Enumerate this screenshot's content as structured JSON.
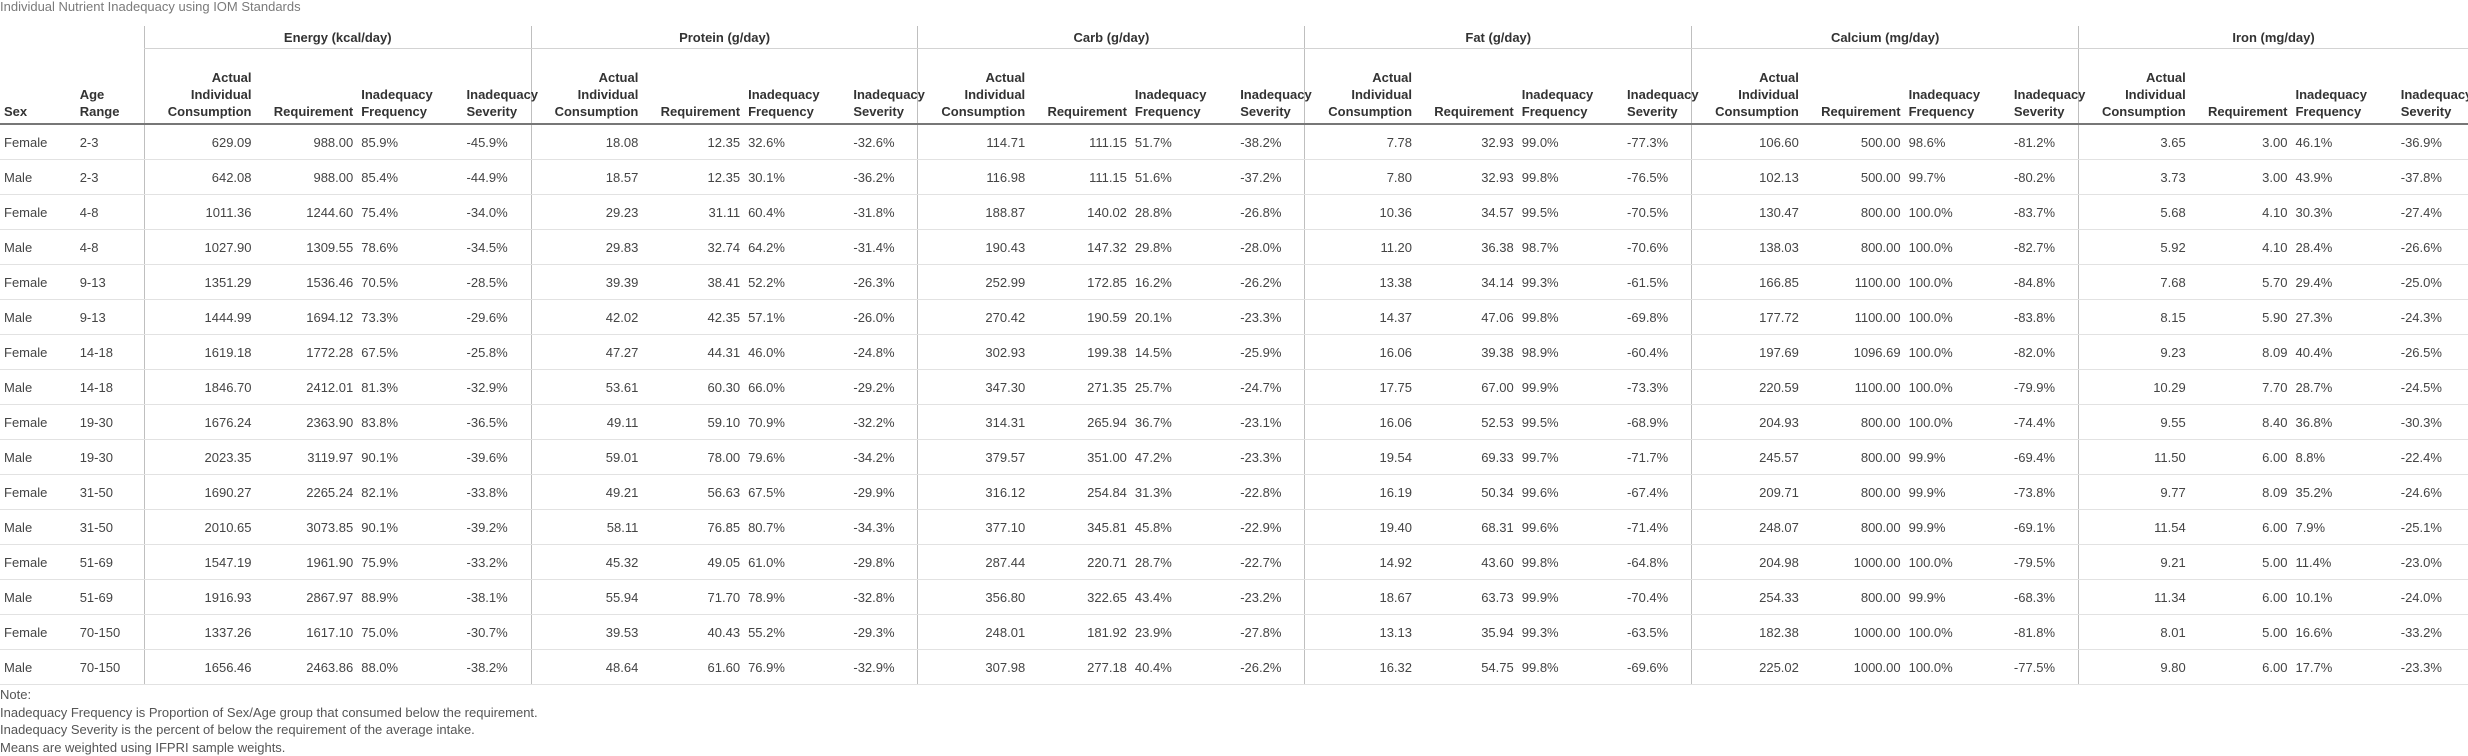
{
  "title": "Individual Nutrient Inadequacy using IOM Standards",
  "group_headers": [
    "Energy (kcal/day)",
    "Protein (g/day)",
    "Carb (g/day)",
    "Fat (g/day)",
    "Calcium (mg/day)",
    "Iron (mg/day)"
  ],
  "col_headers": {
    "sex": "Sex",
    "age": "Age Range",
    "actual": "Actual Individual Consumption",
    "requirement": "Requirement",
    "frequency": "Inadequacy Frequency",
    "severity": "Inadequacy Severity"
  },
  "rows": [
    {
      "sex": "Female",
      "age": "2-3",
      "v": [
        [
          "629.09",
          "988.00",
          "85.9%",
          "-45.9%"
        ],
        [
          "18.08",
          "12.35",
          "32.6%",
          "-32.6%"
        ],
        [
          "114.71",
          "111.15",
          "51.7%",
          "-38.2%"
        ],
        [
          "7.78",
          "32.93",
          "99.0%",
          "-77.3%"
        ],
        [
          "106.60",
          "500.00",
          "98.6%",
          "-81.2%"
        ],
        [
          "3.65",
          "3.00",
          "46.1%",
          "-36.9%"
        ]
      ]
    },
    {
      "sex": "Male",
      "age": "2-3",
      "v": [
        [
          "642.08",
          "988.00",
          "85.4%",
          "-44.9%"
        ],
        [
          "18.57",
          "12.35",
          "30.1%",
          "-36.2%"
        ],
        [
          "116.98",
          "111.15",
          "51.6%",
          "-37.2%"
        ],
        [
          "7.80",
          "32.93",
          "99.8%",
          "-76.5%"
        ],
        [
          "102.13",
          "500.00",
          "99.7%",
          "-80.2%"
        ],
        [
          "3.73",
          "3.00",
          "43.9%",
          "-37.8%"
        ]
      ]
    },
    {
      "sex": "Female",
      "age": "4-8",
      "v": [
        [
          "1011.36",
          "1244.60",
          "75.4%",
          "-34.0%"
        ],
        [
          "29.23",
          "31.11",
          "60.4%",
          "-31.8%"
        ],
        [
          "188.87",
          "140.02",
          "28.8%",
          "-26.8%"
        ],
        [
          "10.36",
          "34.57",
          "99.5%",
          "-70.5%"
        ],
        [
          "130.47",
          "800.00",
          "100.0%",
          "-83.7%"
        ],
        [
          "5.68",
          "4.10",
          "30.3%",
          "-27.4%"
        ]
      ]
    },
    {
      "sex": "Male",
      "age": "4-8",
      "v": [
        [
          "1027.90",
          "1309.55",
          "78.6%",
          "-34.5%"
        ],
        [
          "29.83",
          "32.74",
          "64.2%",
          "-31.4%"
        ],
        [
          "190.43",
          "147.32",
          "29.8%",
          "-28.0%"
        ],
        [
          "11.20",
          "36.38",
          "98.7%",
          "-70.6%"
        ],
        [
          "138.03",
          "800.00",
          "100.0%",
          "-82.7%"
        ],
        [
          "5.92",
          "4.10",
          "28.4%",
          "-26.6%"
        ]
      ]
    },
    {
      "sex": "Female",
      "age": "9-13",
      "v": [
        [
          "1351.29",
          "1536.46",
          "70.5%",
          "-28.5%"
        ],
        [
          "39.39",
          "38.41",
          "52.2%",
          "-26.3%"
        ],
        [
          "252.99",
          "172.85",
          "16.2%",
          "-26.2%"
        ],
        [
          "13.38",
          "34.14",
          "99.3%",
          "-61.5%"
        ],
        [
          "166.85",
          "1100.00",
          "100.0%",
          "-84.8%"
        ],
        [
          "7.68",
          "5.70",
          "29.4%",
          "-25.0%"
        ]
      ]
    },
    {
      "sex": "Male",
      "age": "9-13",
      "v": [
        [
          "1444.99",
          "1694.12",
          "73.3%",
          "-29.6%"
        ],
        [
          "42.02",
          "42.35",
          "57.1%",
          "-26.0%"
        ],
        [
          "270.42",
          "190.59",
          "20.1%",
          "-23.3%"
        ],
        [
          "14.37",
          "47.06",
          "99.8%",
          "-69.8%"
        ],
        [
          "177.72",
          "1100.00",
          "100.0%",
          "-83.8%"
        ],
        [
          "8.15",
          "5.90",
          "27.3%",
          "-24.3%"
        ]
      ]
    },
    {
      "sex": "Female",
      "age": "14-18",
      "v": [
        [
          "1619.18",
          "1772.28",
          "67.5%",
          "-25.8%"
        ],
        [
          "47.27",
          "44.31",
          "46.0%",
          "-24.8%"
        ],
        [
          "302.93",
          "199.38",
          "14.5%",
          "-25.9%"
        ],
        [
          "16.06",
          "39.38",
          "98.9%",
          "-60.4%"
        ],
        [
          "197.69",
          "1096.69",
          "100.0%",
          "-82.0%"
        ],
        [
          "9.23",
          "8.09",
          "40.4%",
          "-26.5%"
        ]
      ]
    },
    {
      "sex": "Male",
      "age": "14-18",
      "v": [
        [
          "1846.70",
          "2412.01",
          "81.3%",
          "-32.9%"
        ],
        [
          "53.61",
          "60.30",
          "66.0%",
          "-29.2%"
        ],
        [
          "347.30",
          "271.35",
          "25.7%",
          "-24.7%"
        ],
        [
          "17.75",
          "67.00",
          "99.9%",
          "-73.3%"
        ],
        [
          "220.59",
          "1100.00",
          "100.0%",
          "-79.9%"
        ],
        [
          "10.29",
          "7.70",
          "28.7%",
          "-24.5%"
        ]
      ]
    },
    {
      "sex": "Female",
      "age": "19-30",
      "v": [
        [
          "1676.24",
          "2363.90",
          "83.8%",
          "-36.5%"
        ],
        [
          "49.11",
          "59.10",
          "70.9%",
          "-32.2%"
        ],
        [
          "314.31",
          "265.94",
          "36.7%",
          "-23.1%"
        ],
        [
          "16.06",
          "52.53",
          "99.5%",
          "-68.9%"
        ],
        [
          "204.93",
          "800.00",
          "100.0%",
          "-74.4%"
        ],
        [
          "9.55",
          "8.40",
          "36.8%",
          "-30.3%"
        ]
      ]
    },
    {
      "sex": "Male",
      "age": "19-30",
      "v": [
        [
          "2023.35",
          "3119.97",
          "90.1%",
          "-39.6%"
        ],
        [
          "59.01",
          "78.00",
          "79.6%",
          "-34.2%"
        ],
        [
          "379.57",
          "351.00",
          "47.2%",
          "-23.3%"
        ],
        [
          "19.54",
          "69.33",
          "99.7%",
          "-71.7%"
        ],
        [
          "245.57",
          "800.00",
          "99.9%",
          "-69.4%"
        ],
        [
          "11.50",
          "6.00",
          "8.8%",
          "-22.4%"
        ]
      ]
    },
    {
      "sex": "Female",
      "age": "31-50",
      "v": [
        [
          "1690.27",
          "2265.24",
          "82.1%",
          "-33.8%"
        ],
        [
          "49.21",
          "56.63",
          "67.5%",
          "-29.9%"
        ],
        [
          "316.12",
          "254.84",
          "31.3%",
          "-22.8%"
        ],
        [
          "16.19",
          "50.34",
          "99.6%",
          "-67.4%"
        ],
        [
          "209.71",
          "800.00",
          "99.9%",
          "-73.8%"
        ],
        [
          "9.77",
          "8.09",
          "35.2%",
          "-24.6%"
        ]
      ]
    },
    {
      "sex": "Male",
      "age": "31-50",
      "v": [
        [
          "2010.65",
          "3073.85",
          "90.1%",
          "-39.2%"
        ],
        [
          "58.11",
          "76.85",
          "80.7%",
          "-34.3%"
        ],
        [
          "377.10",
          "345.81",
          "45.8%",
          "-22.9%"
        ],
        [
          "19.40",
          "68.31",
          "99.6%",
          "-71.4%"
        ],
        [
          "248.07",
          "800.00",
          "99.9%",
          "-69.1%"
        ],
        [
          "11.54",
          "6.00",
          "7.9%",
          "-25.1%"
        ]
      ]
    },
    {
      "sex": "Female",
      "age": "51-69",
      "v": [
        [
          "1547.19",
          "1961.90",
          "75.9%",
          "-33.2%"
        ],
        [
          "45.32",
          "49.05",
          "61.0%",
          "-29.8%"
        ],
        [
          "287.44",
          "220.71",
          "28.7%",
          "-22.7%"
        ],
        [
          "14.92",
          "43.60",
          "99.8%",
          "-64.8%"
        ],
        [
          "204.98",
          "1000.00",
          "100.0%",
          "-79.5%"
        ],
        [
          "9.21",
          "5.00",
          "11.4%",
          "-23.0%"
        ]
      ]
    },
    {
      "sex": "Male",
      "age": "51-69",
      "v": [
        [
          "1916.93",
          "2867.97",
          "88.9%",
          "-38.1%"
        ],
        [
          "55.94",
          "71.70",
          "78.9%",
          "-32.8%"
        ],
        [
          "356.80",
          "322.65",
          "43.4%",
          "-23.2%"
        ],
        [
          "18.67",
          "63.73",
          "99.9%",
          "-70.4%"
        ],
        [
          "254.33",
          "800.00",
          "99.9%",
          "-68.3%"
        ],
        [
          "11.34",
          "6.00",
          "10.1%",
          "-24.0%"
        ]
      ]
    },
    {
      "sex": "Female",
      "age": "70-150",
      "v": [
        [
          "1337.26",
          "1617.10",
          "75.0%",
          "-30.7%"
        ],
        [
          "39.53",
          "40.43",
          "55.2%",
          "-29.3%"
        ],
        [
          "248.01",
          "181.92",
          "23.9%",
          "-27.8%"
        ],
        [
          "13.13",
          "35.94",
          "99.3%",
          "-63.5%"
        ],
        [
          "182.38",
          "1000.00",
          "100.0%",
          "-81.8%"
        ],
        [
          "8.01",
          "5.00",
          "16.6%",
          "-33.2%"
        ]
      ]
    },
    {
      "sex": "Male",
      "age": "70-150",
      "v": [
        [
          "1656.46",
          "2463.86",
          "88.0%",
          "-38.2%"
        ],
        [
          "48.64",
          "61.60",
          "76.9%",
          "-32.9%"
        ],
        [
          "307.98",
          "277.18",
          "40.4%",
          "-26.2%"
        ],
        [
          "16.32",
          "54.75",
          "99.8%",
          "-69.6%"
        ],
        [
          "225.02",
          "1000.00",
          "100.0%",
          "-77.5%"
        ],
        [
          "9.80",
          "6.00",
          "17.7%",
          "-23.3%"
        ]
      ]
    }
  ],
  "notes": [
    "Note:",
    "Inadequacy Frequency is Proportion of Sex/Age group that consumed below the requirement.",
    "Inadequacy Severity is the percent of below the requirement of the average intake.",
    "Means are weighted using IFPRI sample weights."
  ]
}
